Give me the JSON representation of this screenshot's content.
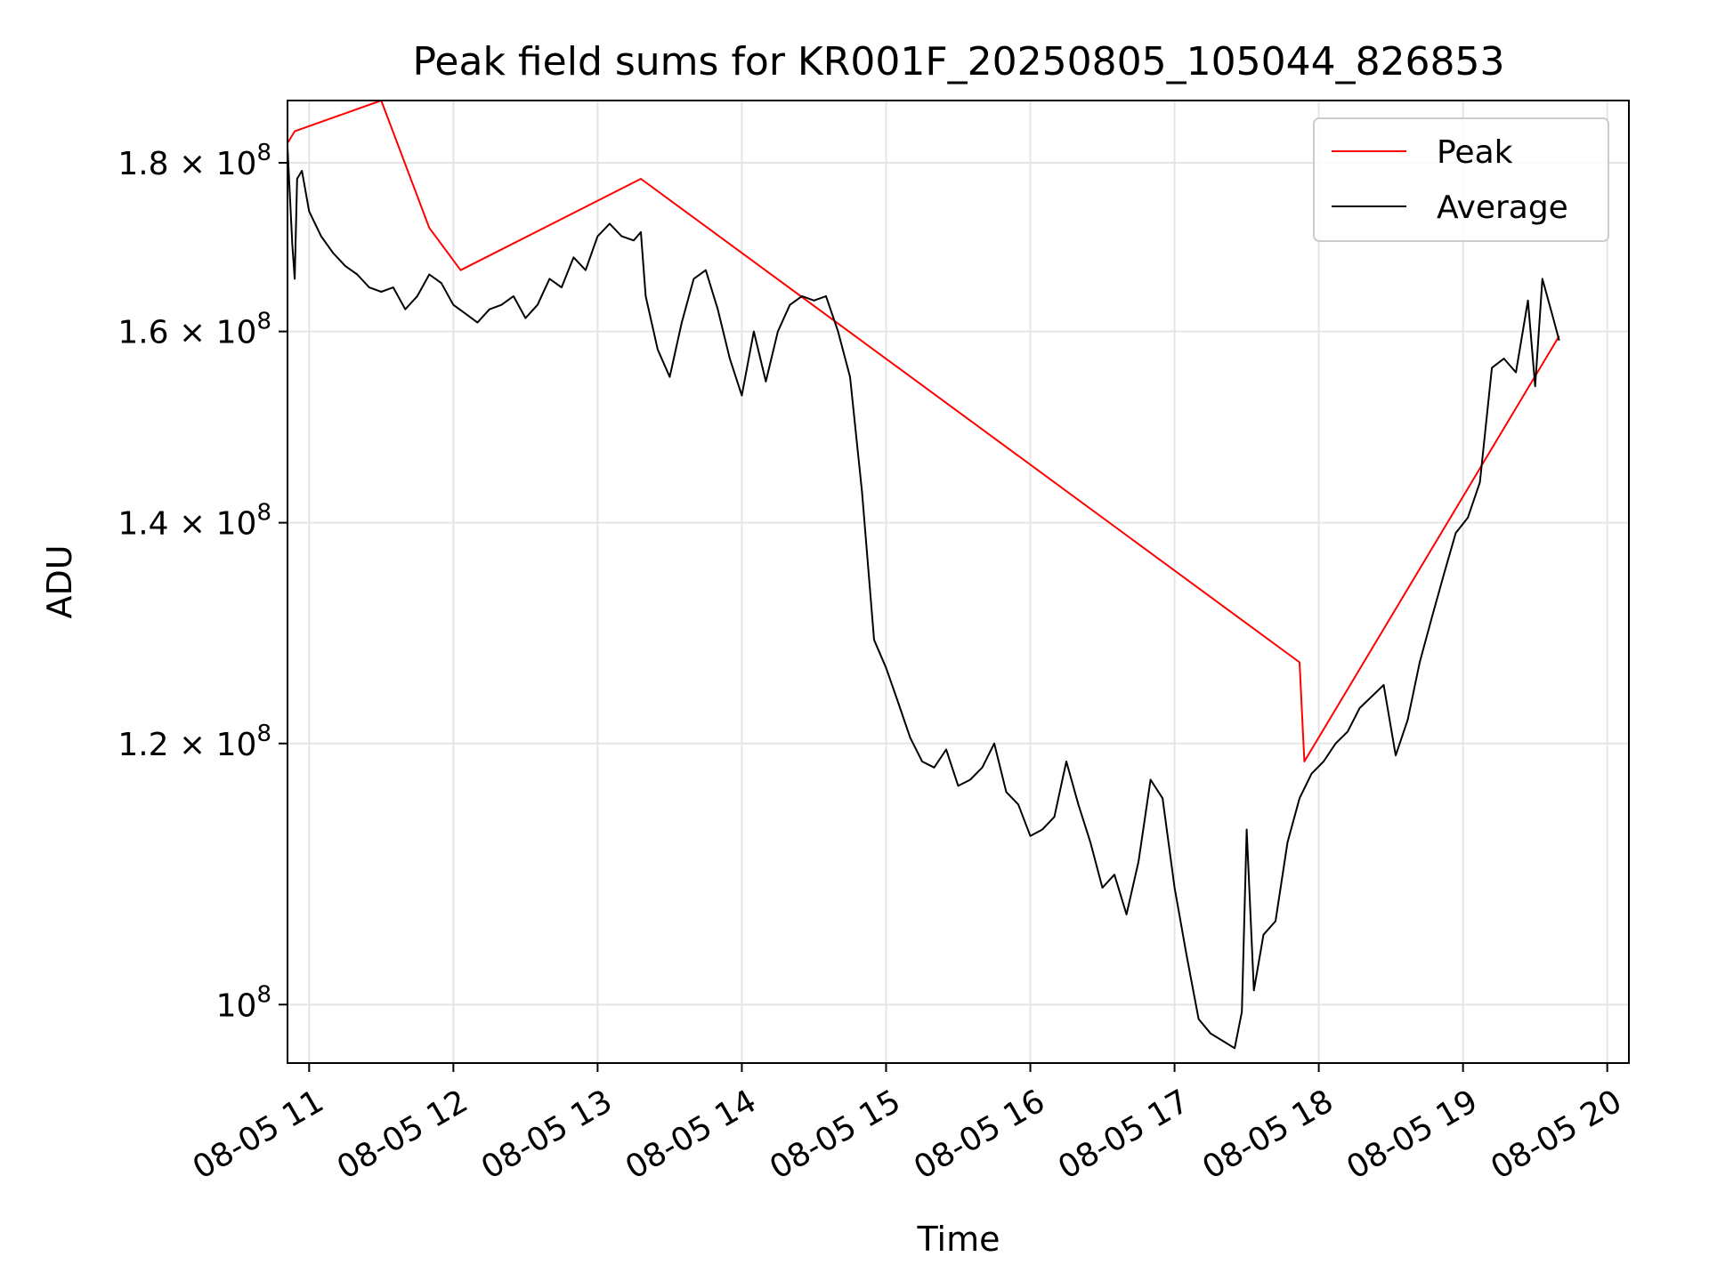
{
  "chart_data": {
    "type": "line",
    "title": "Peak field sums for KR001F_20250805_105044_826853",
    "xlabel": "Time",
    "ylabel": "ADU",
    "y_scale": "log",
    "ylim": [
      96000000,
      188000000
    ],
    "xlim": [
      "2025-08-05 10:51",
      "2025-08-05 20:09"
    ],
    "x_ticks": [
      "2025-08-05 11:00",
      "2025-08-05 12:00",
      "2025-08-05 13:00",
      "2025-08-05 14:00",
      "2025-08-05 15:00",
      "2025-08-05 16:00",
      "2025-08-05 17:00",
      "2025-08-05 18:00",
      "2025-08-05 19:00",
      "2025-08-05 20:00"
    ],
    "x_tick_labels": [
      "08-05 11",
      "08-05 12",
      "08-05 13",
      "08-05 14",
      "08-05 15",
      "08-05 16",
      "08-05 17",
      "08-05 18",
      "08-05 19",
      "08-05 20"
    ],
    "y_ticks": [
      100000000,
      120000000,
      140000000,
      160000000,
      180000000
    ],
    "y_tick_labels": [
      {
        "mantissa": "",
        "exponent": "8"
      },
      {
        "mantissa": "1.2",
        "exponent": "8"
      },
      {
        "mantissa": "1.4",
        "exponent": "8"
      },
      {
        "mantissa": "1.6",
        "exponent": "8"
      },
      {
        "mantissa": "1.8",
        "exponent": "8"
      }
    ],
    "grid": true,
    "legend": "top-right",
    "series": [
      {
        "name": "Average",
        "color": "#000000",
        "points": [
          [
            "2025-08-05 10:51",
            182000000
          ],
          [
            "2025-08-05 10:53",
            170000000
          ],
          [
            "2025-08-05 10:54",
            166000000
          ],
          [
            "2025-08-05 10:55",
            178000000
          ],
          [
            "2025-08-05 10:57",
            179000000
          ],
          [
            "2025-08-05 11:00",
            174000000
          ],
          [
            "2025-08-05 11:05",
            171000000
          ],
          [
            "2025-08-05 11:10",
            169000000
          ],
          [
            "2025-08-05 11:15",
            167500000
          ],
          [
            "2025-08-05 11:20",
            166500000
          ],
          [
            "2025-08-05 11:25",
            165000000
          ],
          [
            "2025-08-05 11:30",
            164500000
          ],
          [
            "2025-08-05 11:35",
            165000000
          ],
          [
            "2025-08-05 11:40",
            162500000
          ],
          [
            "2025-08-05 11:45",
            164000000
          ],
          [
            "2025-08-05 11:50",
            166500000
          ],
          [
            "2025-08-05 11:55",
            165500000
          ],
          [
            "2025-08-05 12:00",
            163000000
          ],
          [
            "2025-08-05 12:05",
            162000000
          ],
          [
            "2025-08-05 12:10",
            161000000
          ],
          [
            "2025-08-05 12:15",
            162500000
          ],
          [
            "2025-08-05 12:20",
            163000000
          ],
          [
            "2025-08-05 12:25",
            164000000
          ],
          [
            "2025-08-05 12:30",
            161500000
          ],
          [
            "2025-08-05 12:35",
            163000000
          ],
          [
            "2025-08-05 12:40",
            166000000
          ],
          [
            "2025-08-05 12:45",
            165000000
          ],
          [
            "2025-08-05 12:50",
            168500000
          ],
          [
            "2025-08-05 12:55",
            167000000
          ],
          [
            "2025-08-05 13:00",
            171000000
          ],
          [
            "2025-08-05 13:05",
            172500000
          ],
          [
            "2025-08-05 13:10",
            171000000
          ],
          [
            "2025-08-05 13:15",
            170500000
          ],
          [
            "2025-08-05 13:18",
            171500000
          ],
          [
            "2025-08-05 13:20",
            164000000
          ],
          [
            "2025-08-05 13:25",
            158000000
          ],
          [
            "2025-08-05 13:30",
            155000000
          ],
          [
            "2025-08-05 13:35",
            161000000
          ],
          [
            "2025-08-05 13:40",
            166000000
          ],
          [
            "2025-08-05 13:45",
            167000000
          ],
          [
            "2025-08-05 13:50",
            162500000
          ],
          [
            "2025-08-05 13:55",
            157000000
          ],
          [
            "2025-08-05 14:00",
            153000000
          ],
          [
            "2025-08-05 14:05",
            160000000
          ],
          [
            "2025-08-05 14:10",
            154500000
          ],
          [
            "2025-08-05 14:15",
            160000000
          ],
          [
            "2025-08-05 14:20",
            163000000
          ],
          [
            "2025-08-05 14:25",
            164000000
          ],
          [
            "2025-08-05 14:30",
            163500000
          ],
          [
            "2025-08-05 14:35",
            164000000
          ],
          [
            "2025-08-05 14:40",
            160000000
          ],
          [
            "2025-08-05 14:45",
            155000000
          ],
          [
            "2025-08-05 14:50",
            143000000
          ],
          [
            "2025-08-05 14:55",
            129000000
          ],
          [
            "2025-08-05 15:00",
            126500000
          ],
          [
            "2025-08-05 15:05",
            123500000
          ],
          [
            "2025-08-05 15:10",
            120500000
          ],
          [
            "2025-08-05 15:15",
            118500000
          ],
          [
            "2025-08-05 15:20",
            118000000
          ],
          [
            "2025-08-05 15:25",
            119500000
          ],
          [
            "2025-08-05 15:30",
            116500000
          ],
          [
            "2025-08-05 15:35",
            117000000
          ],
          [
            "2025-08-05 15:40",
            118000000
          ],
          [
            "2025-08-05 15:45",
            120000000
          ],
          [
            "2025-08-05 15:50",
            116000000
          ],
          [
            "2025-08-05 15:55",
            115000000
          ],
          [
            "2025-08-05 16:00",
            112500000
          ],
          [
            "2025-08-05 16:05",
            113000000
          ],
          [
            "2025-08-05 16:10",
            114000000
          ],
          [
            "2025-08-05 16:15",
            118500000
          ],
          [
            "2025-08-05 16:20",
            115000000
          ],
          [
            "2025-08-05 16:25",
            112000000
          ],
          [
            "2025-08-05 16:30",
            108500000
          ],
          [
            "2025-08-05 16:35",
            109500000
          ],
          [
            "2025-08-05 16:40",
            106500000
          ],
          [
            "2025-08-05 16:45",
            110500000
          ],
          [
            "2025-08-05 16:50",
            117000000
          ],
          [
            "2025-08-05 16:55",
            115500000
          ],
          [
            "2025-08-05 17:00",
            108500000
          ],
          [
            "2025-08-05 17:05",
            103500000
          ],
          [
            "2025-08-05 17:10",
            99000000
          ],
          [
            "2025-08-05 17:15",
            98000000
          ],
          [
            "2025-08-05 17:20",
            97500000
          ],
          [
            "2025-08-05 17:25",
            97000000
          ],
          [
            "2025-08-05 17:28",
            99500000
          ],
          [
            "2025-08-05 17:30",
            113000000
          ],
          [
            "2025-08-05 17:33",
            101000000
          ],
          [
            "2025-08-05 17:37",
            105000000
          ],
          [
            "2025-08-05 17:42",
            106000000
          ],
          [
            "2025-08-05 17:47",
            112000000
          ],
          [
            "2025-08-05 17:52",
            115500000
          ],
          [
            "2025-08-05 17:57",
            117500000
          ],
          [
            "2025-08-05 18:02",
            118500000
          ],
          [
            "2025-08-05 18:07",
            120000000
          ],
          [
            "2025-08-05 18:12",
            121000000
          ],
          [
            "2025-08-05 18:17",
            123000000
          ],
          [
            "2025-08-05 18:22",
            124000000
          ],
          [
            "2025-08-05 18:27",
            125000000
          ],
          [
            "2025-08-05 18:32",
            119000000
          ],
          [
            "2025-08-05 18:37",
            122000000
          ],
          [
            "2025-08-05 18:42",
            127000000
          ],
          [
            "2025-08-05 18:47",
            131000000
          ],
          [
            "2025-08-05 18:52",
            135000000
          ],
          [
            "2025-08-05 18:57",
            139000000
          ],
          [
            "2025-08-05 19:02",
            140500000
          ],
          [
            "2025-08-05 19:07",
            144000000
          ],
          [
            "2025-08-05 19:12",
            156000000
          ],
          [
            "2025-08-05 19:17",
            157000000
          ],
          [
            "2025-08-05 19:22",
            155500000
          ],
          [
            "2025-08-05 19:27",
            163500000
          ],
          [
            "2025-08-05 19:30",
            154000000
          ],
          [
            "2025-08-05 19:33",
            166000000
          ],
          [
            "2025-08-05 19:37",
            162000000
          ],
          [
            "2025-08-05 19:40",
            159000000
          ]
        ]
      },
      {
        "name": "Peak",
        "color": "#ff0000",
        "points": [
          [
            "2025-08-05 10:51",
            182500000
          ],
          [
            "2025-08-05 10:54",
            184000000
          ],
          [
            "2025-08-05 11:30",
            188000000
          ],
          [
            "2025-08-05 11:50",
            172000000
          ],
          [
            "2025-08-05 12:03",
            167000000
          ],
          [
            "2025-08-05 13:18",
            178000000
          ],
          [
            "2025-08-05 17:52",
            127000000
          ],
          [
            "2025-08-05 17:54",
            118500000
          ],
          [
            "2025-08-05 19:40",
            159500000
          ]
        ]
      }
    ]
  }
}
